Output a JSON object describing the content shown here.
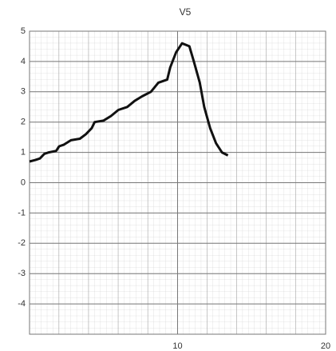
{
  "chart_data": {
    "type": "line",
    "title": "V5",
    "x": [
      0,
      0.4,
      0.7,
      1.0,
      1.3,
      1.8,
      2.0,
      2.3,
      2.8,
      3.4,
      3.8,
      4.2,
      4.4,
      5.0,
      5.5,
      6.0,
      6.6,
      7.1,
      7.6,
      8.2,
      8.7,
      9.3,
      9.5,
      9.9,
      10.3,
      10.8,
      11.1,
      11.5,
      11.8,
      12.2,
      12.6,
      13.0,
      13.4
    ],
    "series": [
      {
        "name": "V5",
        "color": "#111111",
        "values": [
          0.7,
          0.75,
          0.8,
          0.95,
          1.0,
          1.05,
          1.2,
          1.25,
          1.4,
          1.45,
          1.6,
          1.8,
          2.0,
          2.05,
          2.2,
          2.4,
          2.5,
          2.7,
          2.85,
          3.0,
          3.3,
          3.4,
          3.8,
          4.3,
          4.6,
          4.5,
          4.0,
          3.3,
          2.5,
          1.8,
          1.3,
          1.0,
          0.9
        ]
      }
    ],
    "xlim": [
      0,
      20
    ],
    "xticks": [
      10,
      20
    ],
    "ylim": [
      -5,
      5
    ],
    "yticks": [
      5,
      4,
      3,
      2,
      1,
      0,
      -1,
      -2,
      -3,
      -4
    ],
    "grid": true
  }
}
